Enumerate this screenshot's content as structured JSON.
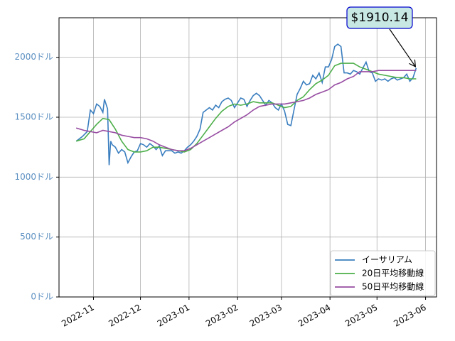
{
  "chart_data": {
    "type": "line",
    "annotation": "$1910.14",
    "xlim": [
      -22,
      219
    ],
    "xticks": [
      {
        "value": 0,
        "label": "2022-11"
      },
      {
        "value": 30,
        "label": "2022-12"
      },
      {
        "value": 61,
        "label": "2023-01"
      },
      {
        "value": 92,
        "label": "2023-02"
      },
      {
        "value": 120,
        "label": "2023-03"
      },
      {
        "value": 151,
        "label": "2023-04"
      },
      {
        "value": 181,
        "label": "2023-05"
      },
      {
        "value": 212,
        "label": "2023-06"
      }
    ],
    "ylim": [
      0,
      2330
    ],
    "yticks": [
      {
        "value": 0,
        "label": "0ドル"
      },
      {
        "value": 500,
        "label": "500ドル"
      },
      {
        "value": 1000,
        "label": "1000ドル"
      },
      {
        "value": 1500,
        "label": "1500ドル"
      },
      {
        "value": 2000,
        "label": "2000ドル"
      }
    ],
    "grid": true,
    "legend": "lower right",
    "series": [
      {
        "name": "イーサリアム",
        "color": "#3a7ebf",
        "x": [
          -11,
          -7,
          -4,
          -2,
          0,
          2,
          4,
          6,
          7,
          9,
          10,
          11,
          12,
          14,
          16,
          18,
          20,
          22,
          24,
          26,
          28,
          30,
          32,
          34,
          36,
          38,
          40,
          42,
          44,
          46,
          48,
          50,
          52,
          54,
          56,
          58,
          60,
          62,
          64,
          66,
          68,
          70,
          72,
          74,
          76,
          78,
          80,
          82,
          84,
          86,
          88,
          90,
          92,
          94,
          96,
          98,
          100,
          102,
          104,
          106,
          108,
          110,
          112,
          114,
          116,
          118,
          120,
          122,
          124,
          126,
          128,
          130,
          132,
          134,
          136,
          138,
          140,
          142,
          144,
          146,
          148,
          150,
          152,
          154,
          156,
          158,
          160,
          162,
          164,
          166,
          168,
          170,
          172,
          174,
          176,
          178,
          180,
          182,
          184,
          186,
          188,
          190,
          192,
          194,
          196,
          198,
          200,
          202,
          204,
          206
        ],
        "values": [
          1300,
          1340,
          1380,
          1560,
          1530,
          1610,
          1590,
          1540,
          1650,
          1570,
          1100,
          1300,
          1270,
          1250,
          1200,
          1230,
          1210,
          1120,
          1170,
          1210,
          1220,
          1280,
          1270,
          1250,
          1280,
          1260,
          1230,
          1260,
          1180,
          1220,
          1220,
          1220,
          1200,
          1210,
          1200,
          1220,
          1250,
          1270,
          1300,
          1340,
          1400,
          1540,
          1560,
          1580,
          1560,
          1600,
          1580,
          1630,
          1650,
          1660,
          1640,
          1580,
          1620,
          1660,
          1650,
          1590,
          1640,
          1680,
          1700,
          1680,
          1640,
          1600,
          1640,
          1620,
          1580,
          1560,
          1610,
          1550,
          1440,
          1430,
          1560,
          1690,
          1740,
          1800,
          1770,
          1780,
          1850,
          1820,
          1870,
          1790,
          1920,
          1920,
          1980,
          2090,
          2110,
          2090,
          1870,
          1870,
          1860,
          1890,
          1880,
          1860,
          1910,
          1960,
          1880,
          1870,
          1800,
          1820,
          1810,
          1820,
          1800,
          1820,
          1830,
          1810,
          1820,
          1830,
          1860,
          1800,
          1830,
          1910.14
        ]
      },
      {
        "name": "20日平均移動線",
        "color": "#4daf4a",
        "x": [
          -11,
          -6,
          -2,
          2,
          6,
          10,
          14,
          18,
          22,
          26,
          30,
          34,
          38,
          42,
          46,
          50,
          54,
          58,
          62,
          66,
          70,
          74,
          78,
          82,
          86,
          90,
          94,
          98,
          102,
          106,
          110,
          114,
          118,
          122,
          126,
          130,
          134,
          138,
          142,
          146,
          150,
          154,
          158,
          162,
          166,
          170,
          174,
          178,
          182,
          186,
          190,
          194,
          198,
          202,
          206
        ],
        "values": [
          1300,
          1320,
          1380,
          1440,
          1490,
          1480,
          1400,
          1300,
          1230,
          1210,
          1210,
          1220,
          1250,
          1250,
          1240,
          1230,
          1220,
          1210,
          1230,
          1280,
          1350,
          1420,
          1490,
          1550,
          1590,
          1610,
          1600,
          1610,
          1630,
          1620,
          1620,
          1620,
          1600,
          1580,
          1590,
          1640,
          1670,
          1730,
          1780,
          1810,
          1850,
          1930,
          1950,
          1950,
          1950,
          1920,
          1900,
          1880,
          1860,
          1850,
          1840,
          1830,
          1830,
          1820,
          1820
        ]
      },
      {
        "name": "50日平均移動線",
        "color": "#984ea3",
        "x": [
          -11,
          -6,
          -2,
          2,
          6,
          10,
          14,
          18,
          22,
          26,
          30,
          34,
          38,
          42,
          46,
          50,
          54,
          58,
          62,
          66,
          70,
          74,
          78,
          82,
          86,
          90,
          94,
          98,
          102,
          106,
          110,
          114,
          118,
          122,
          126,
          130,
          134,
          138,
          142,
          146,
          150,
          154,
          158,
          162,
          166,
          170,
          174,
          178,
          182,
          186,
          190,
          194,
          198,
          202,
          206
        ],
        "values": [
          1410,
          1390,
          1380,
          1370,
          1390,
          1380,
          1370,
          1350,
          1340,
          1330,
          1330,
          1320,
          1300,
          1270,
          1250,
          1230,
          1220,
          1220,
          1240,
          1270,
          1300,
          1330,
          1360,
          1390,
          1420,
          1460,
          1490,
          1520,
          1560,
          1590,
          1600,
          1610,
          1610,
          1610,
          1620,
          1630,
          1640,
          1660,
          1690,
          1710,
          1730,
          1770,
          1790,
          1820,
          1840,
          1880,
          1880,
          1880,
          1890,
          1890,
          1890,
          1890,
          1890,
          1890,
          1890
        ]
      }
    ]
  }
}
